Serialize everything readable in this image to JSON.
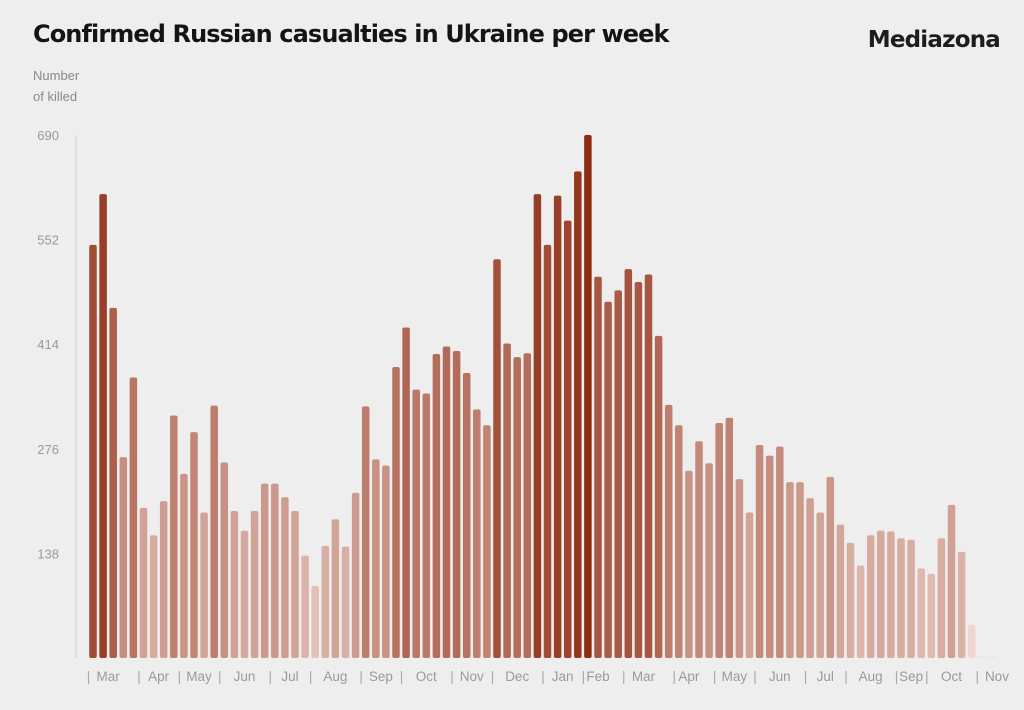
{
  "header": {
    "title": "Confirmed Russian casualties in Ukraine per week",
    "brand": "Mediazona"
  },
  "colors": {
    "background": "#eeeeee",
    "bar_dark": "#8f2d14",
    "bar_light": "#f0d8d2",
    "axis_text": "#9a9a9a"
  },
  "chart_data": {
    "type": "bar",
    "title": "Confirmed Russian casualties in Ukraine per week",
    "xlabel": "",
    "ylabel": "Number of killed",
    "ylabel_lines": [
      "Number",
      "of killed"
    ],
    "ylim": [
      0,
      690
    ],
    "yticks": [
      138,
      276,
      414,
      552,
      690
    ],
    "grid": false,
    "legend": "none",
    "color_encoding": "darker bar = higher weekly value",
    "x_month_labels": [
      "Mar",
      "Apr",
      "May",
      "Jun",
      "Jul",
      "Aug",
      "Sep",
      "Oct",
      "Nov",
      "Dec",
      "Jan",
      "Feb",
      "Mar",
      "Apr",
      "May",
      "Jun",
      "Jul",
      "Aug",
      "Sep",
      "Oct",
      "Nov"
    ],
    "x_month_label_weeks": [
      2,
      7,
      11,
      15.5,
      20,
      24.5,
      29,
      33.5,
      38,
      42.5,
      47,
      50.5,
      55,
      59.5,
      64,
      68.5,
      73,
      77.5,
      81.5,
      85.5,
      90
    ],
    "x_separator_weeks": [
      0,
      5,
      9,
      13,
      18,
      22,
      27,
      31,
      36,
      40,
      45,
      49,
      53,
      58,
      62,
      66,
      71,
      75,
      80,
      83,
      88
    ],
    "values": [
      545,
      612,
      462,
      265,
      370,
      198,
      162,
      207,
      320,
      243,
      298,
      192,
      333,
      258,
      194,
      168,
      194,
      230,
      230,
      212,
      194,
      135,
      95,
      148,
      183,
      147,
      218,
      332,
      262,
      254,
      384,
      436,
      354,
      349,
      401,
      411,
      405,
      376,
      328,
      307,
      526,
      415,
      397,
      402,
      612,
      545,
      610,
      577,
      642,
      690,
      503,
      470,
      485,
      513,
      496,
      506,
      425,
      334,
      307,
      247,
      286,
      257,
      310,
      317,
      236,
      192,
      281,
      267,
      279,
      232,
      232,
      211,
      192,
      239,
      176,
      152,
      122,
      162,
      168,
      167,
      158,
      156,
      118,
      111,
      158,
      202,
      140,
      44,
      2,
      2
    ]
  }
}
